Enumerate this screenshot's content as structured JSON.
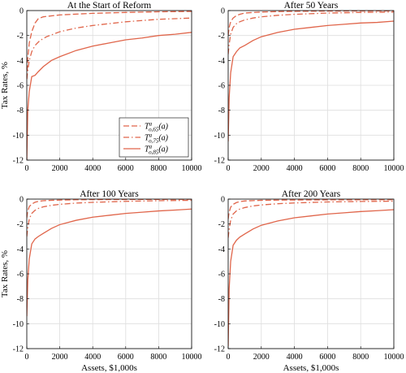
{
  "colors": {
    "series": "#e0654a",
    "grid": "#dedede",
    "axes": "#000000"
  },
  "chart_data": [
    {
      "type": "line",
      "title": "At the Start of Reform",
      "xlabel": "",
      "ylabel": "Tax Rates, %",
      "xlim": [
        0,
        10000
      ],
      "ylim": [
        -12,
        0
      ],
      "xticks": [
        0,
        2000,
        4000,
        6000,
        8000,
        10000
      ],
      "yticks": [
        -12,
        -10,
        -8,
        -6,
        -4,
        -2,
        0
      ],
      "xtick_labels": [
        "0",
        "2000",
        "4000",
        "6000",
        "8000",
        "10000"
      ],
      "ytick_labels": [
        "-12",
        "-10",
        "-8",
        "-6",
        "-4",
        "-2",
        "0"
      ],
      "grid": true,
      "legend": {
        "position": "center",
        "entries": [
          {
            "main": "T",
            "sup": "a",
            "sub": "o,65",
            "tail": "(a)",
            "dash": "dashed"
          },
          {
            "main": "T",
            "sup": "a",
            "sub": "o,75",
            "tail": "(a)",
            "dash": "dashdot"
          },
          {
            "main": "T",
            "sup": "a",
            "sub": "o,85",
            "tail": "(a)",
            "dash": "solid"
          }
        ]
      },
      "series": [
        {
          "dash": "dashed",
          "x": [
            0,
            60,
            150,
            300,
            500,
            700,
            1000,
            2000,
            4000,
            6000,
            8000,
            10000
          ],
          "y": [
            -5.5,
            -3.8,
            -2.6,
            -1.7,
            -1.0,
            -0.65,
            -0.5,
            -0.35,
            -0.22,
            -0.15,
            -0.1,
            -0.07
          ]
        },
        {
          "dash": "dashdot",
          "x": [
            0,
            60,
            150,
            300,
            500,
            800,
            1200,
            2000,
            3000,
            4000,
            6000,
            8000,
            10000
          ],
          "y": [
            -5.5,
            -4.8,
            -4.0,
            -3.3,
            -2.8,
            -2.4,
            -2.1,
            -1.7,
            -1.4,
            -1.2,
            -0.9,
            -0.7,
            -0.6
          ]
        },
        {
          "dash": "solid",
          "x": [
            0,
            60,
            150,
            300,
            500,
            700,
            1000,
            1500,
            2000,
            3000,
            4000,
            5000,
            6000,
            7000,
            8000,
            9000,
            10000
          ],
          "y": [
            -12.0,
            -8.0,
            -6.5,
            -5.3,
            -5.2,
            -4.9,
            -4.5,
            -4.0,
            -3.7,
            -3.2,
            -2.85,
            -2.6,
            -2.35,
            -2.2,
            -2.0,
            -1.9,
            -1.75
          ]
        }
      ]
    },
    {
      "type": "line",
      "title": "After 50 Years",
      "xlabel": "",
      "ylabel": "",
      "xlim": [
        0,
        10000
      ],
      "ylim": [
        -12,
        0
      ],
      "xticks": [
        0,
        2000,
        4000,
        6000,
        8000,
        10000
      ],
      "yticks": [
        -12,
        -10,
        -8,
        -6,
        -4,
        -2,
        0
      ],
      "xtick_labels": [
        "0",
        "2000",
        "4000",
        "6000",
        "8000",
        "10000"
      ],
      "ytick_labels": [
        "-12",
        "-10",
        "-8",
        "-6",
        "-4",
        "-2",
        "0"
      ],
      "grid": true,
      "series": [
        {
          "dash": "dashed",
          "x": [
            0,
            50,
            150,
            300,
            500,
            700,
            1000,
            1500,
            2000,
            3000,
            4000,
            6000,
            8000,
            10000
          ],
          "y": [
            -2.0,
            -1.4,
            -0.9,
            -0.6,
            -0.4,
            -0.3,
            -0.2,
            -0.15,
            -0.12,
            -0.08,
            -0.06,
            -0.04,
            -0.03,
            -0.02
          ]
        },
        {
          "dash": "dashdot",
          "x": [
            0,
            50,
            150,
            300,
            500,
            700,
            1000,
            1500,
            2000,
            3000,
            4000,
            6000,
            8000,
            10000
          ],
          "y": [
            -3.5,
            -2.8,
            -1.9,
            -1.35,
            -1.05,
            -0.9,
            -0.75,
            -0.6,
            -0.5,
            -0.38,
            -0.3,
            -0.2,
            -0.15,
            -0.12
          ]
        },
        {
          "dash": "solid",
          "x": [
            0,
            60,
            150,
            300,
            500,
            700,
            1000,
            1500,
            2000,
            3000,
            4000,
            5000,
            6000,
            7000,
            8000,
            9000,
            10000
          ],
          "y": [
            -10.5,
            -7.0,
            -5.0,
            -3.7,
            -3.3,
            -3.0,
            -2.8,
            -2.4,
            -2.1,
            -1.75,
            -1.5,
            -1.35,
            -1.2,
            -1.1,
            -1.0,
            -0.95,
            -0.85
          ]
        }
      ]
    },
    {
      "type": "line",
      "title": "After 100 Years",
      "xlabel": "Assets, $1,000s",
      "ylabel": "Tax Rates, %",
      "xlim": [
        0,
        10000
      ],
      "ylim": [
        -12,
        0
      ],
      "xticks": [
        0,
        2000,
        4000,
        6000,
        8000,
        10000
      ],
      "yticks": [
        -12,
        -10,
        -8,
        -6,
        -4,
        -2,
        0
      ],
      "xtick_labels": [
        "0",
        "2000",
        "4000",
        "6000",
        "8000",
        "10000"
      ],
      "ytick_labels": [
        "-12",
        "-10",
        "-8",
        "-6",
        "-4",
        "-2",
        "0"
      ],
      "grid": true,
      "series": [
        {
          "dash": "dashed",
          "x": [
            0,
            50,
            150,
            300,
            500,
            700,
            1000,
            1500,
            2000,
            3000,
            4000,
            6000,
            8000,
            10000
          ],
          "y": [
            -1.5,
            -1.0,
            -0.6,
            -0.4,
            -0.25,
            -0.18,
            -0.13,
            -0.1,
            -0.08,
            -0.05,
            -0.04,
            -0.03,
            -0.02,
            -0.01
          ]
        },
        {
          "dash": "dashdot",
          "x": [
            0,
            50,
            150,
            300,
            500,
            700,
            1000,
            1500,
            2000,
            3000,
            4000,
            6000,
            8000,
            10000
          ],
          "y": [
            -3.0,
            -2.4,
            -1.6,
            -1.15,
            -0.9,
            -0.75,
            -0.62,
            -0.5,
            -0.42,
            -0.32,
            -0.26,
            -0.18,
            -0.13,
            -0.1
          ]
        },
        {
          "dash": "solid",
          "x": [
            0,
            60,
            150,
            300,
            500,
            700,
            1000,
            1500,
            2000,
            3000,
            4000,
            5000,
            6000,
            7000,
            8000,
            9000,
            10000
          ],
          "y": [
            -9.4,
            -6.5,
            -4.8,
            -3.6,
            -3.2,
            -3.0,
            -2.75,
            -2.35,
            -2.05,
            -1.7,
            -1.45,
            -1.3,
            -1.15,
            -1.05,
            -0.95,
            -0.88,
            -0.8
          ]
        }
      ]
    },
    {
      "type": "line",
      "title": "After 200 Years",
      "xlabel": "Assets, $1,000s",
      "ylabel": "",
      "xlim": [
        0,
        10000
      ],
      "ylim": [
        -12,
        0
      ],
      "xticks": [
        0,
        2000,
        4000,
        6000,
        8000,
        10000
      ],
      "yticks": [
        -12,
        -10,
        -8,
        -6,
        -4,
        -2,
        0
      ],
      "xtick_labels": [
        "0",
        "2000",
        "4000",
        "6000",
        "8000",
        "10000"
      ],
      "ytick_labels": [
        "-12",
        "-10",
        "-8",
        "-6",
        "-4",
        "-2",
        "0"
      ],
      "grid": true,
      "series": [
        {
          "dash": "dashed",
          "x": [
            0,
            50,
            150,
            300,
            500,
            700,
            1000,
            1500,
            2000,
            3000,
            4000,
            6000,
            8000,
            10000
          ],
          "y": [
            -1.6,
            -1.1,
            -0.65,
            -0.42,
            -0.28,
            -0.2,
            -0.15,
            -0.12,
            -0.1,
            -0.08,
            -0.07,
            -0.06,
            -0.05,
            -0.05
          ]
        },
        {
          "dash": "dashdot",
          "x": [
            0,
            50,
            150,
            300,
            500,
            700,
            1000,
            1500,
            2000,
            3000,
            4000,
            6000,
            8000,
            10000
          ],
          "y": [
            -3.1,
            -2.5,
            -1.7,
            -1.2,
            -0.95,
            -0.8,
            -0.68,
            -0.55,
            -0.47,
            -0.37,
            -0.31,
            -0.23,
            -0.19,
            -0.17
          ]
        },
        {
          "dash": "solid",
          "x": [
            0,
            60,
            150,
            300,
            500,
            700,
            1000,
            1500,
            2000,
            3000,
            4000,
            5000,
            6000,
            7000,
            8000,
            9000,
            10000
          ],
          "y": [
            -11.8,
            -7.2,
            -5.0,
            -3.7,
            -3.3,
            -3.05,
            -2.8,
            -2.4,
            -2.1,
            -1.75,
            -1.5,
            -1.35,
            -1.2,
            -1.1,
            -1.0,
            -0.93,
            -0.85
          ]
        }
      ]
    }
  ]
}
